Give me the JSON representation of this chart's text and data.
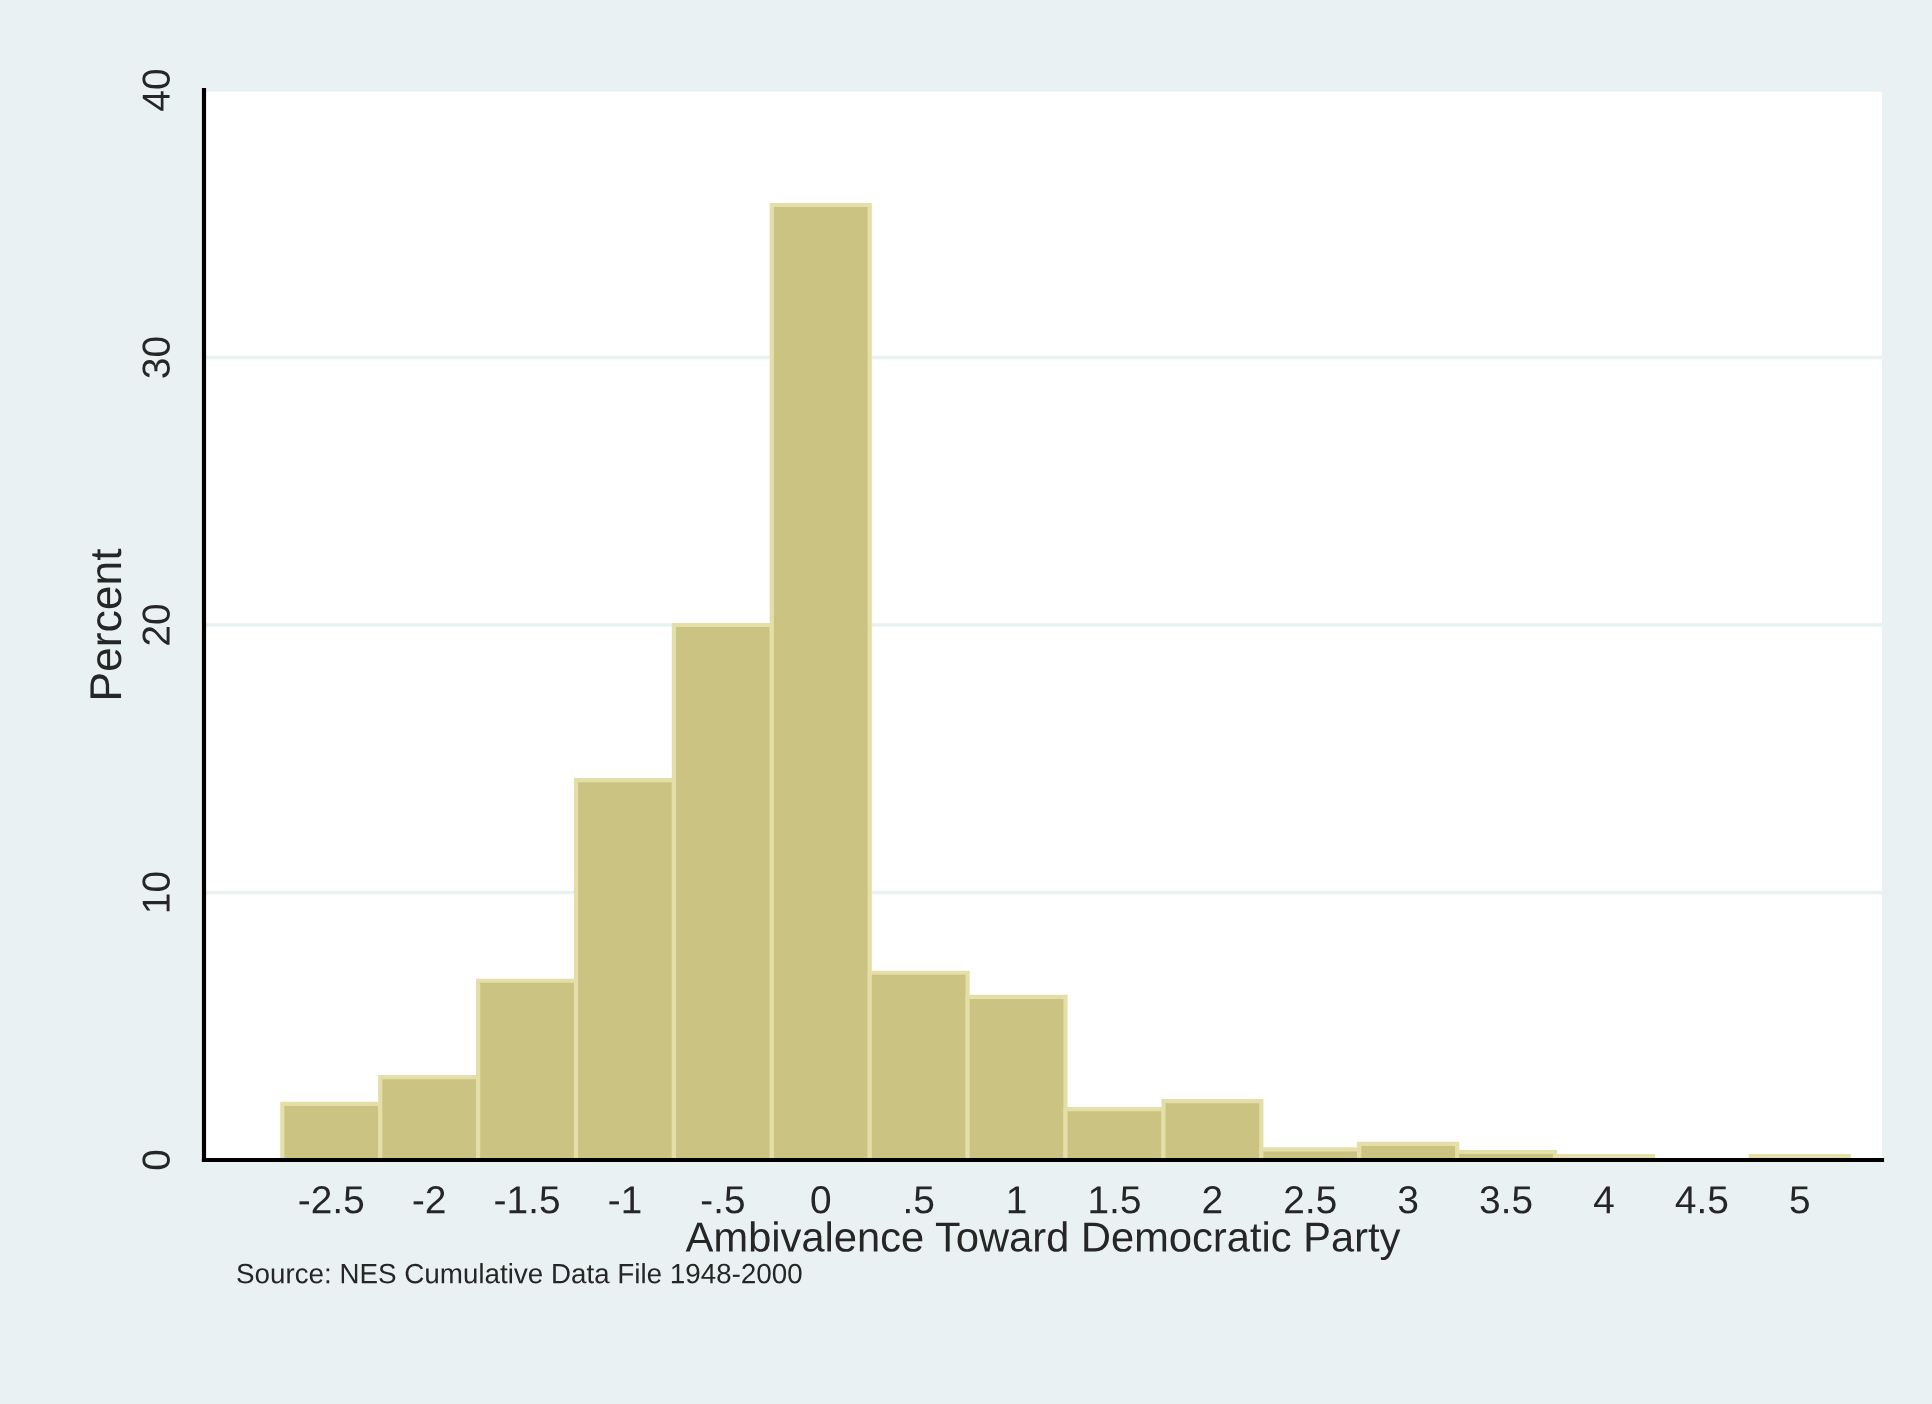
{
  "chart_data": {
    "type": "histogram",
    "xlabel": "Ambivalence Toward Democratic Party",
    "ylabel": "Percent",
    "annotations": [
      "Source: NES Cumulative Data File 1948-2000"
    ],
    "bins": [
      -2.75,
      -2.25,
      -1.75,
      -1.25,
      -0.75,
      -0.25,
      0.25,
      0.75,
      1.25,
      1.75,
      2.25,
      2.75,
      3.25,
      3.75,
      4.25,
      4.75,
      5.25
    ],
    "values": [
      2.1,
      3.1,
      6.7,
      14.2,
      20.0,
      35.7,
      7.0,
      6.1,
      1.9,
      2.2,
      0.4,
      0.6,
      0.3,
      0.15,
      0,
      0.15
    ],
    "color": "#cbc382",
    "xlim": [
      -3.15,
      5.42
    ],
    "ylim": [
      0,
      40
    ],
    "xticks": [
      {
        "value": -2.5,
        "label": "-2.5"
      },
      {
        "value": -2,
        "label": "-2"
      },
      {
        "value": -1.5,
        "label": "-1.5"
      },
      {
        "value": -1,
        "label": "-1"
      },
      {
        "value": -0.5,
        "label": "-.5"
      },
      {
        "value": 0,
        "label": "0"
      },
      {
        "value": 0.5,
        "label": ".5"
      },
      {
        "value": 1,
        "label": "1"
      },
      {
        "value": 1.5,
        "label": "1.5"
      },
      {
        "value": 2,
        "label": "2"
      },
      {
        "value": 2.5,
        "label": "2.5"
      },
      {
        "value": 3,
        "label": "3"
      },
      {
        "value": 3.5,
        "label": "3.5"
      },
      {
        "value": 4,
        "label": "4"
      },
      {
        "value": 4.5,
        "label": "4.5"
      },
      {
        "value": 5,
        "label": "5"
      }
    ],
    "yticks": [
      0,
      10,
      20,
      30,
      40
    ],
    "grid": "y"
  }
}
